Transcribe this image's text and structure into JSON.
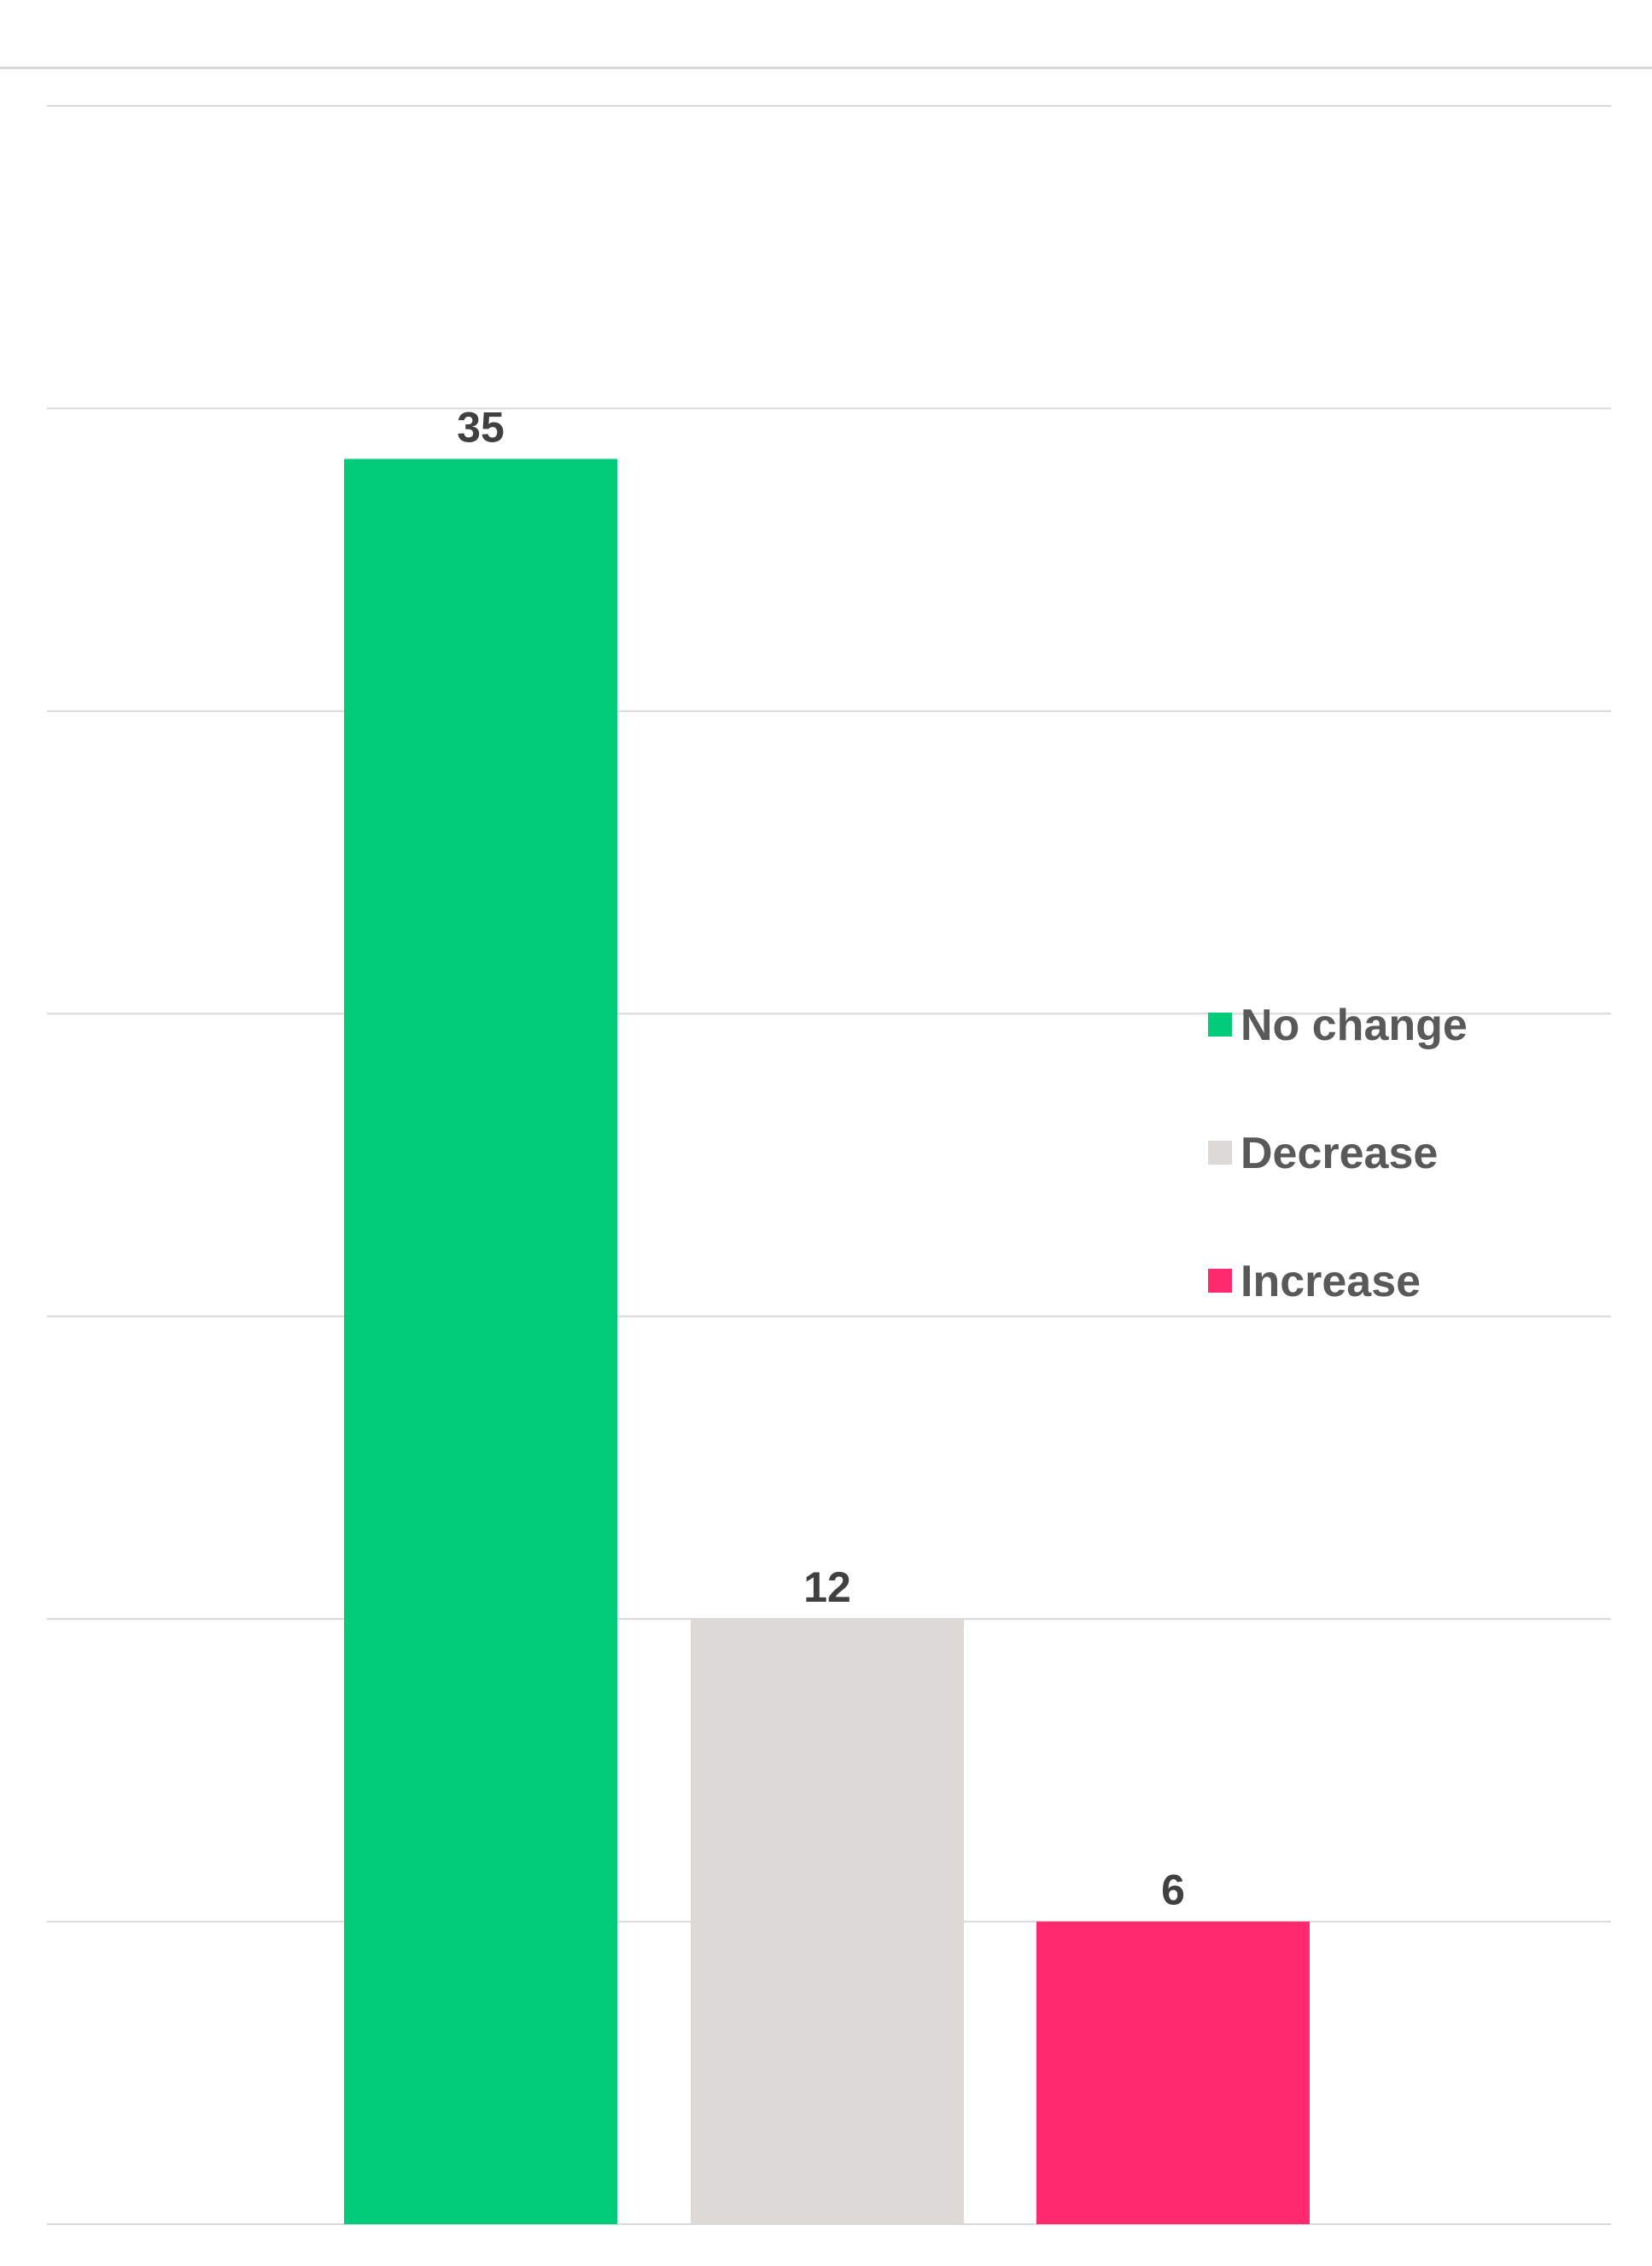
{
  "chart_data": {
    "type": "bar",
    "title": "",
    "xlabel": "",
    "ylabel": "",
    "categories": [
      "No change",
      "Decrease",
      "Increase"
    ],
    "values": [
      35,
      12,
      6
    ],
    "colors": [
      "#00cc7a",
      "#dcd9d6",
      "#ff2a6d"
    ],
    "ylim": [
      0,
      42
    ],
    "grid": true,
    "legend": {
      "position": "right",
      "entries": [
        {
          "label": "No change",
          "color": "#00cc7a"
        },
        {
          "label": "Decrease",
          "color": "#dcd9d6"
        },
        {
          "label": "Increase",
          "color": "#ff2a6d"
        }
      ]
    }
  }
}
